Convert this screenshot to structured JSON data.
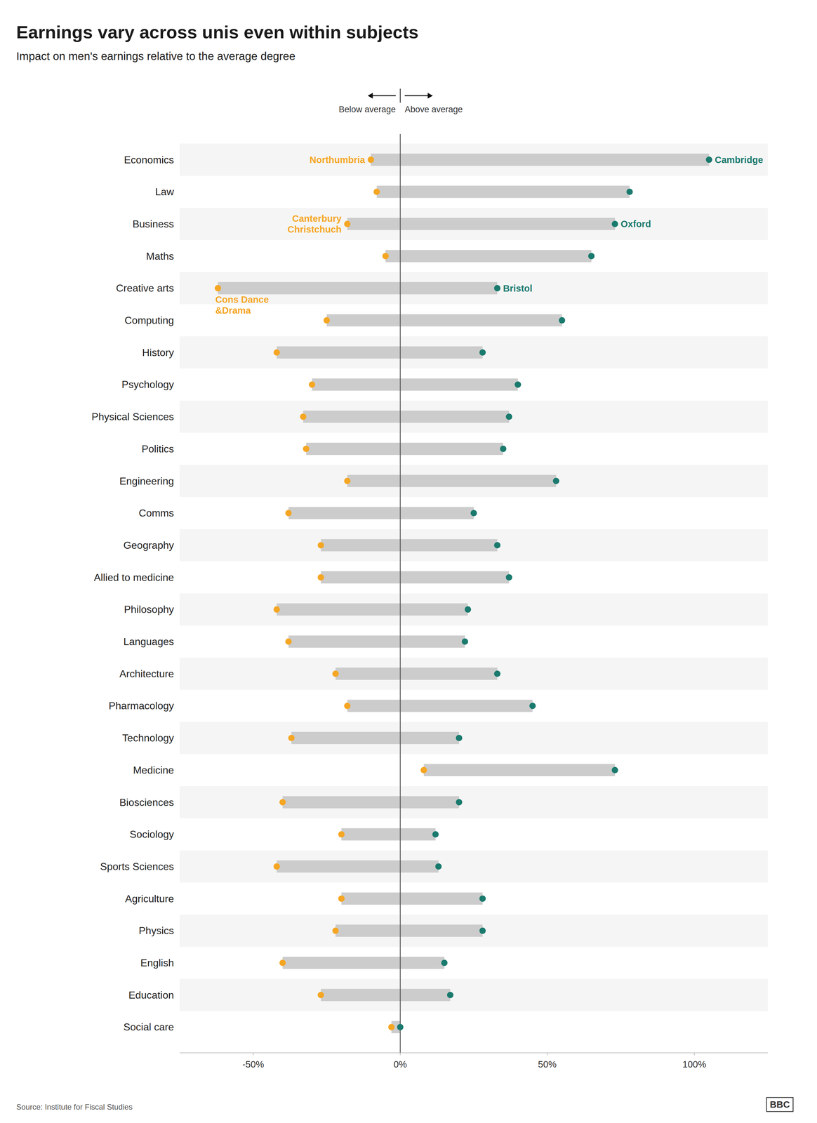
{
  "chart_data": {
    "type": "dumbbell",
    "orientation": "horizontal",
    "title": "Earnings vary across unis even within subjects",
    "subtitle": "Impact on men's earnings relative to the average degree",
    "source": "Source: Institute for Fiscal Studies",
    "credit": "BBC",
    "categories": [
      "Economics",
      "Law",
      "Business",
      "Maths",
      "Creative arts",
      "Computing",
      "History",
      "Psychology",
      "Physical Sciences",
      "Politics",
      "Engineering",
      "Comms",
      "Geography",
      "Allied to medicine",
      "Philosophy",
      "Languages",
      "Architecture",
      "Pharmacology",
      "Technology",
      "Medicine",
      "Biosciences",
      "Sociology",
      "Sports Sciences",
      "Agriculture",
      "Physics",
      "English",
      "Education",
      "Social care"
    ],
    "series": [
      {
        "color": "#f5a623",
        "values": [
          -10,
          -8,
          -18,
          -5,
          -62,
          -25,
          -42,
          -30,
          -33,
          -32,
          -18,
          -38,
          -27,
          -27,
          -42,
          -38,
          -22,
          -18,
          -37,
          8,
          -40,
          -20,
          -42,
          -20,
          -22,
          -40,
          -27,
          -3
        ]
      },
      {
        "color": "#1a7a6e",
        "values": [
          105,
          78,
          73,
          65,
          33,
          55,
          28,
          40,
          37,
          35,
          53,
          25,
          33,
          37,
          23,
          22,
          33,
          45,
          20,
          73,
          20,
          12,
          13,
          28,
          28,
          15,
          17,
          0
        ]
      }
    ],
    "color": "#cccccc",
    "xlim": [
      -75,
      125
    ],
    "xticks": [
      {
        "value": -50,
        "label": "-50%"
      },
      {
        "value": 0,
        "label": "0%"
      },
      {
        "value": 50,
        "label": "50%"
      },
      {
        "value": 100,
        "label": "100%"
      }
    ],
    "grid": false,
    "annotations": [
      {
        "text": "Below average"
      },
      {
        "text": "Above average"
      },
      {
        "text": "Northumbria",
        "series": 0,
        "category": "Economics"
      },
      {
        "text": "Canterbury\nChristchuch",
        "series": 0,
        "category": "Business"
      },
      {
        "text": "Cons Dance\n&Drama",
        "series": 0,
        "category": "Creative arts"
      },
      {
        "text": "Cambridge",
        "series": 1,
        "category": "Economics"
      },
      {
        "text": "Oxford",
        "series": 1,
        "category": "Business"
      },
      {
        "text": "Bristol",
        "series": 1,
        "category": "Creative arts"
      }
    ]
  }
}
